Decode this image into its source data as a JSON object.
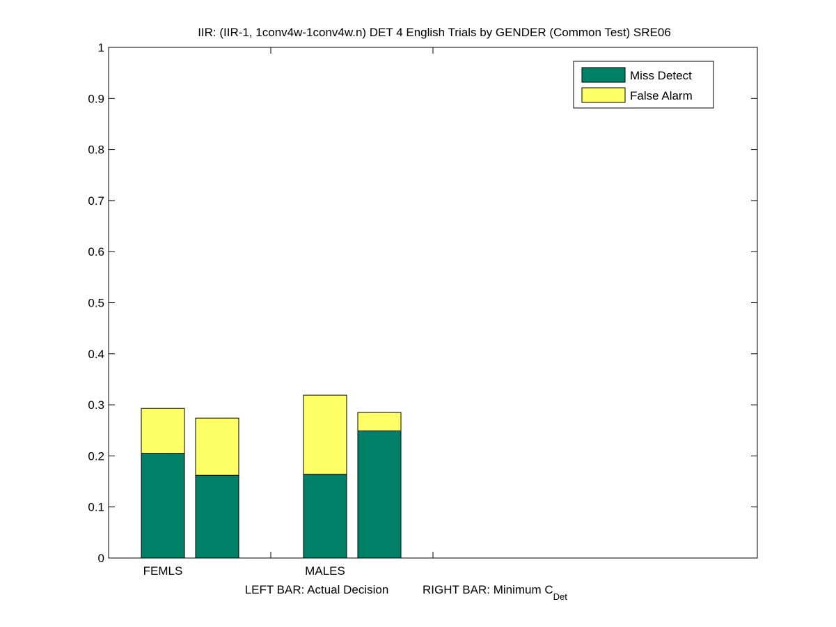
{
  "chart_data": {
    "type": "bar",
    "stacked": true,
    "title": "IIR: (IIR-1, 1conv4w-1conv4w.n) DET 4 English Trials by GENDER (Common Test) SRE06",
    "xlabel_left": "LEFT BAR: Actual Decision",
    "xlabel_right_main": "RIGHT BAR: Minimum C",
    "xlabel_right_sub": "Det",
    "ylim": [
      0,
      1
    ],
    "yticks": [
      "0",
      "0.1",
      "0.2",
      "0.3",
      "0.4",
      "0.5",
      "0.6",
      "0.7",
      "0.8",
      "0.9",
      "1"
    ],
    "ytick_values": [
      0,
      0.1,
      0.2,
      0.3,
      0.4,
      0.5,
      0.6,
      0.7,
      0.8,
      0.9,
      1
    ],
    "categories": [
      "FEMLS",
      "MALES"
    ],
    "bars_per_category": [
      "Actual Decision",
      "Minimum CDet"
    ],
    "series": [
      {
        "name": "Miss Detect",
        "color": "#008066",
        "values": [
          [
            0.205,
            0.162
          ],
          [
            0.164,
            0.249
          ]
        ]
      },
      {
        "name": "False Alarm",
        "color": "#ffff66",
        "values": [
          [
            0.088,
            0.112
          ],
          [
            0.155,
            0.036
          ]
        ]
      }
    ],
    "legend_position": "top-right",
    "grid": false
  }
}
